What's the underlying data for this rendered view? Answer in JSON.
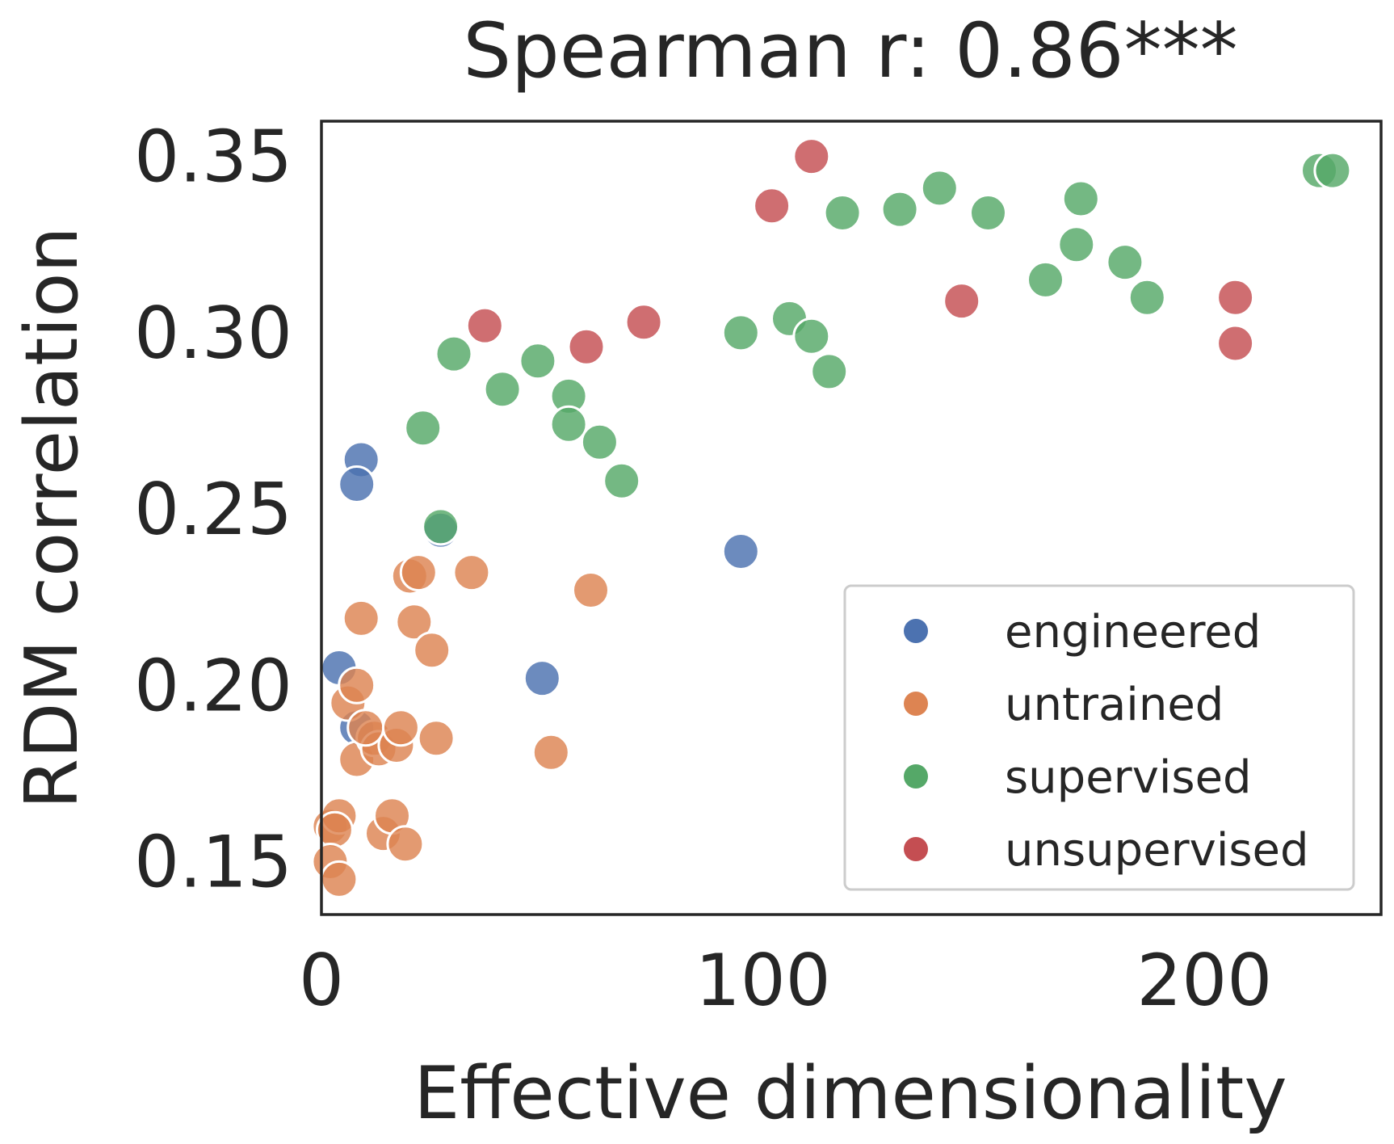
{
  "chart_data": {
    "type": "scatter",
    "title": "Spearman r: 0.86***",
    "xlabel": "Effective dimensionality",
    "ylabel": "RDM correlation",
    "xlim": [
      0,
      240
    ],
    "ylim": [
      0.135,
      0.36
    ],
    "xticks": [
      0,
      100,
      200
    ],
    "xtick_labels": [
      "0",
      "100",
      "200"
    ],
    "yticks": [
      0.15,
      0.2,
      0.25,
      0.3,
      0.35
    ],
    "ytick_labels": [
      "0.15",
      "0.20",
      "0.25",
      "0.30",
      "0.35"
    ],
    "grid": false,
    "legend_position": "bottom-right",
    "series": [
      {
        "name": "engineered",
        "color": "#4c72b0",
        "points": [
          [
            4,
            0.205
          ],
          [
            9,
            0.264
          ],
          [
            8,
            0.257
          ],
          [
            27,
            0.244
          ],
          [
            8,
            0.188
          ],
          [
            95,
            0.238
          ],
          [
            50,
            0.202
          ]
        ]
      },
      {
        "name": "untrained",
        "color": "#dd8452",
        "points": [
          [
            2,
            0.16
          ],
          [
            4,
            0.163
          ],
          [
            3,
            0.159
          ],
          [
            2,
            0.15
          ],
          [
            4,
            0.145
          ],
          [
            6,
            0.195
          ],
          [
            8,
            0.2
          ],
          [
            9,
            0.219
          ],
          [
            8,
            0.179
          ],
          [
            12,
            0.185
          ],
          [
            13,
            0.182
          ],
          [
            10,
            0.188
          ],
          [
            17,
            0.183
          ],
          [
            18,
            0.188
          ],
          [
            14,
            0.158
          ],
          [
            16,
            0.163
          ],
          [
            19,
            0.155
          ],
          [
            20,
            0.231
          ],
          [
            22,
            0.232
          ],
          [
            21,
            0.218
          ],
          [
            25,
            0.21
          ],
          [
            26,
            0.185
          ],
          [
            34,
            0.232
          ],
          [
            52,
            0.181
          ],
          [
            61,
            0.227
          ]
        ]
      },
      {
        "name": "supervised",
        "color": "#55a868",
        "points": [
          [
            23,
            0.273
          ],
          [
            30,
            0.294
          ],
          [
            41,
            0.284
          ],
          [
            49,
            0.292
          ],
          [
            56,
            0.282
          ],
          [
            56,
            0.274
          ],
          [
            63,
            0.269
          ],
          [
            68,
            0.258
          ],
          [
            27,
            0.245
          ],
          [
            95,
            0.3
          ],
          [
            106,
            0.304
          ],
          [
            111,
            0.299
          ],
          [
            115,
            0.289
          ],
          [
            118,
            0.334
          ],
          [
            131,
            0.335
          ],
          [
            140,
            0.341
          ],
          [
            151,
            0.334
          ],
          [
            164,
            0.315
          ],
          [
            172,
            0.338
          ],
          [
            171,
            0.325
          ],
          [
            182,
            0.32
          ],
          [
            187,
            0.31
          ],
          [
            226,
            0.346
          ],
          [
            229,
            0.346
          ]
        ]
      },
      {
        "name": "unsupervised",
        "color": "#c44e52",
        "points": [
          [
            37,
            0.302
          ],
          [
            60,
            0.296
          ],
          [
            73,
            0.303
          ],
          [
            102,
            0.336
          ],
          [
            111,
            0.35
          ],
          [
            145,
            0.309
          ],
          [
            207,
            0.31
          ],
          [
            207,
            0.297
          ]
        ]
      }
    ]
  }
}
